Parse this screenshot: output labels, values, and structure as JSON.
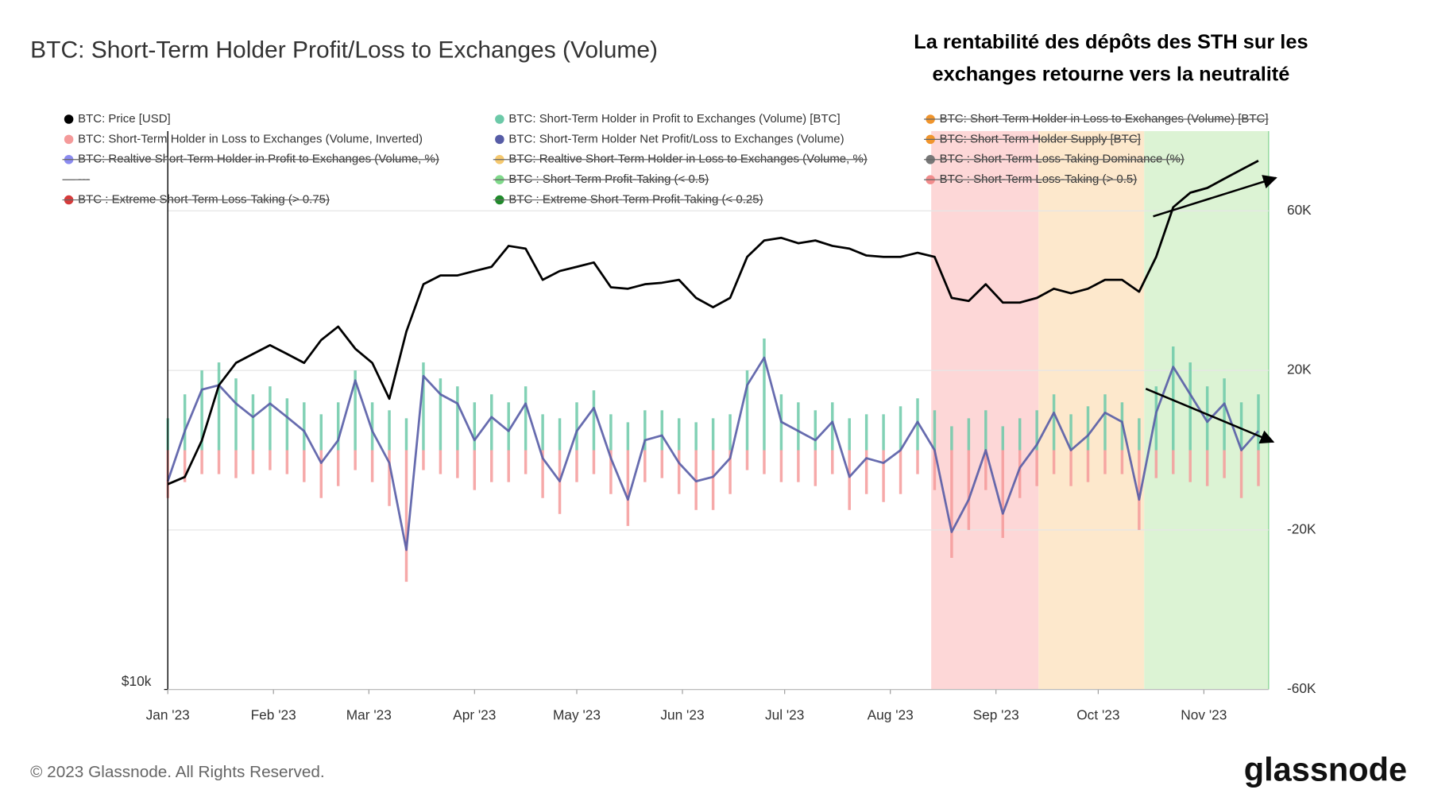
{
  "chart_data": {
    "type": "line",
    "title": "BTC: Short-Term Holder Profit/Loss to Exchanges (Volume)",
    "annotation": [
      "La rentabilité des dépôts des STH sur les",
      "exchanges retourne vers la neutralité"
    ],
    "footer": "© 2023 Glassnode. All Rights Reserved.",
    "brand": "glassnode",
    "x": [
      0,
      5,
      10,
      15,
      20,
      25,
      30,
      35,
      40,
      45,
      50,
      55,
      60,
      65,
      70,
      75,
      80,
      85,
      90,
      95,
      100,
      105,
      110,
      115,
      120,
      125,
      130,
      135,
      140,
      145,
      150,
      155,
      160,
      165,
      170,
      175,
      180,
      185,
      190,
      195,
      200,
      205,
      210,
      215,
      220,
      225,
      230,
      235,
      240,
      245,
      250,
      255,
      260,
      265,
      270,
      275,
      280,
      285,
      290,
      295,
      300,
      305,
      310,
      315,
      320
    ],
    "xlim": [
      0,
      323
    ],
    "xticks": [
      {
        "value": 0,
        "label": "Jan '23"
      },
      {
        "value": 31,
        "label": "Feb '23"
      },
      {
        "value": 59,
        "label": "Mar '23"
      },
      {
        "value": 90,
        "label": "Apr '23"
      },
      {
        "value": 120,
        "label": "May '23"
      },
      {
        "value": 151,
        "label": "Jun '23"
      },
      {
        "value": 181,
        "label": "Jul '23"
      },
      {
        "value": 212,
        "label": "Aug '23"
      },
      {
        "value": 243,
        "label": "Sep '23"
      },
      {
        "value": 273,
        "label": "Oct '23"
      },
      {
        "value": 304,
        "label": "Nov '23"
      }
    ],
    "ylim": [
      10000,
      39700
    ],
    "ylog": true,
    "yticks": [
      {
        "value": 10000,
        "label": "$10k"
      }
    ],
    "y2lim": [
      -60000,
      80000
    ],
    "y2ticks": [
      {
        "value": -60000,
        "label": "-60K"
      },
      {
        "value": -20000,
        "label": "-20K"
      },
      {
        "value": 20000,
        "label": "20K"
      },
      {
        "value": 60000,
        "label": "60K"
      }
    ],
    "grid": true,
    "bands": [
      {
        "x": [
          224,
          255.5
        ],
        "color": "#fdd7d7"
      },
      {
        "x": [
          255.5,
          286.5
        ],
        "color": "#fde8cc"
      },
      {
        "x": [
          286.5,
          323
        ],
        "color": "#dcf3d4"
      }
    ],
    "series": [
      {
        "name": "BTC: Price [USD]",
        "color": "#000000",
        "kind": "line",
        "axis": "y",
        "values": [
          16600,
          16900,
          18500,
          21200,
          22400,
          22900,
          23400,
          22900,
          22400,
          23700,
          24500,
          23200,
          22400,
          20500,
          24200,
          27200,
          27800,
          27800,
          28100,
          28400,
          29900,
          29700,
          27500,
          28100,
          28400,
          28700,
          27000,
          26900,
          27200,
          27300,
          27500,
          26300,
          25700,
          26300,
          29100,
          30300,
          30500,
          30100,
          30300,
          29900,
          29700,
          29200,
          29100,
          29100,
          29400,
          29100,
          26300,
          26100,
          27200,
          26000,
          26000,
          26300,
          26900,
          26600,
          26900,
          27500,
          27500,
          26700,
          29100,
          32900,
          34100,
          34500,
          35300,
          36100,
          36900
        ]
      },
      {
        "name": "BTC: Short-Term Holder in Profit to Exchanges (Volume) [BTC]",
        "color": "#6cc9a8",
        "kind": "bar",
        "axis": "y2",
        "values": [
          8000,
          14000,
          20000,
          22000,
          18000,
          14000,
          16000,
          13000,
          12000,
          9000,
          12000,
          20000,
          12000,
          10000,
          8000,
          22000,
          18000,
          16000,
          12000,
          14000,
          12000,
          16000,
          9000,
          8000,
          12000,
          15000,
          9000,
          7000,
          10000,
          10000,
          8000,
          7000,
          8000,
          9000,
          20000,
          28000,
          14000,
          12000,
          10000,
          12000,
          8000,
          9000,
          9000,
          11000,
          13000,
          10000,
          6000,
          8000,
          10000,
          6000,
          8000,
          10000,
          14000,
          9000,
          11000,
          14000,
          12000,
          8000,
          16000,
          26000,
          22000,
          16000,
          18000,
          12000,
          14000
        ]
      },
      {
        "name": "BTC: Short-Term Holder in Loss to Exchanges (Volume) [BTC]",
        "color": "#f0952d",
        "hidden": true
      },
      {
        "name": "BTC: Short-Term Holder in Loss to Exchanges (Volume, Inverted)",
        "color": "#f49a9a",
        "kind": "bar",
        "axis": "y2",
        "values": [
          -12000,
          -8000,
          -6000,
          -6000,
          -7000,
          -6000,
          -5000,
          -6000,
          -8000,
          -12000,
          -9000,
          -5000,
          -8000,
          -14000,
          -33000,
          -5000,
          -6000,
          -7000,
          -10000,
          -8000,
          -8000,
          -6000,
          -12000,
          -16000,
          -8000,
          -6000,
          -11000,
          -19000,
          -8000,
          -7000,
          -11000,
          -15000,
          -15000,
          -11000,
          -5000,
          -6000,
          -8000,
          -8000,
          -9000,
          -6000,
          -15000,
          -11000,
          -13000,
          -11000,
          -6000,
          -10000,
          -27000,
          -20000,
          -10000,
          -22000,
          -12000,
          -9000,
          -6000,
          -9000,
          -8000,
          -6000,
          -6000,
          -20000,
          -7000,
          -6000,
          -8000,
          -9000,
          -7000,
          -12000,
          -9000
        ]
      },
      {
        "name": "BTC: Short-Term Holder Net Profit/Loss to Exchanges (Volume)",
        "color": "#565ca6",
        "kind": "line",
        "axis": "y2",
        "values": [
          -7800,
          4800,
          15200,
          16300,
          11700,
          8300,
          11700,
          8300,
          4800,
          -3200,
          2500,
          17500,
          4800,
          -3200,
          -25000,
          18600,
          14000,
          11700,
          2500,
          8300,
          4800,
          11700,
          -2000,
          -7800,
          4800,
          10600,
          -2000,
          -12400,
          2500,
          3700,
          -3200,
          -7800,
          -6700,
          -2000,
          16300,
          23200,
          7100,
          4800,
          2500,
          7100,
          -6700,
          -2000,
          -3200,
          0,
          7100,
          0,
          -20500,
          -12400,
          0,
          -15900,
          -4400,
          1400,
          9400,
          0,
          3700,
          9400,
          7100,
          -12400,
          9400,
          20900,
          14000,
          7100,
          11700,
          0,
          4800
        ]
      },
      {
        "name": "BTC: Short-Term Holder Supply [BTC]",
        "color": "#f0952d",
        "hidden": true
      },
      {
        "name": "BTC: Realtive Short-Term Holder in Profit to Exchanges (Volume, %)",
        "color": "#8b8bf0",
        "hidden": true
      },
      {
        "name": "BTC: Realtive Short-Term Holder in Loss to Exchanges (Volume, %)",
        "color": "#f5c86e",
        "hidden": true
      },
      {
        "name": "BTC : Short-Term Loss-Taking Dominance (%)",
        "color": "#777777",
        "hidden": true
      },
      {
        "name": "---",
        "color": "#999999",
        "hidden": true,
        "marker": "line"
      },
      {
        "name": "BTC : Short-Term Profit-Taking (< 0.5)",
        "color": "#7fd98a",
        "hidden": true
      },
      {
        "name": "BTC : Short-Term Loss-Taking (> 0.5)",
        "color": "#f28c8c",
        "hidden": true
      },
      {
        "name": "BTC : Extreme Short-Term Loss-Taking (> 0.75)",
        "color": "#d63a3a",
        "hidden": true
      },
      {
        "name": "BTC : Extreme Short-Term Profit-Taking (< 0.25)",
        "color": "#1f8a2a",
        "hidden": true
      }
    ]
  }
}
